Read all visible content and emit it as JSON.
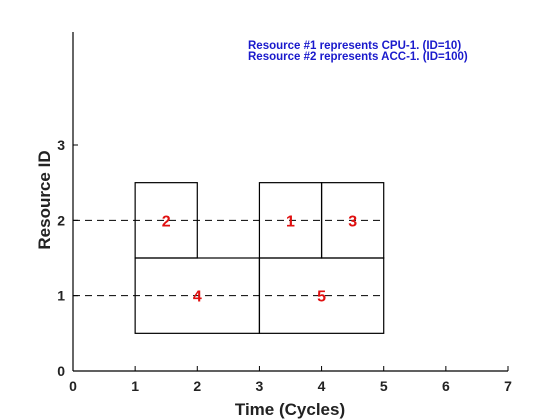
{
  "chart_data": {
    "type": "gantt",
    "xlabel": "Time (Cycles)",
    "ylabel": "Resource ID",
    "xlim": [
      0,
      7
    ],
    "ylim": [
      0,
      4.5
    ],
    "xticks": [
      0,
      1,
      2,
      3,
      4,
      5,
      6,
      7
    ],
    "yticks": [
      0,
      1,
      2,
      3
    ],
    "resources": [
      1,
      2
    ],
    "tasks": [
      {
        "label": "2",
        "start": 1,
        "end": 2,
        "y_low": 1.5,
        "y_high": 2.5
      },
      {
        "label": "1",
        "start": 3,
        "end": 4,
        "y_low": 1.5,
        "y_high": 2.5
      },
      {
        "label": "3",
        "start": 4,
        "end": 5,
        "y_low": 1.5,
        "y_high": 2.5
      },
      {
        "label": "4",
        "start": 1,
        "end": 3,
        "y_low": 0.5,
        "y_high": 1.5
      },
      {
        "label": "5",
        "start": 3,
        "end": 5,
        "y_low": 0.5,
        "y_high": 1.5
      }
    ],
    "annotations": [
      "Resource #1 represents CPU-1. (ID=10)",
      "Resource #2 represents ACC-1. (ID=100)"
    ],
    "colors": {
      "annotation": "#1a1acc",
      "task_label": "#e01010",
      "axis": "#000000"
    }
  }
}
